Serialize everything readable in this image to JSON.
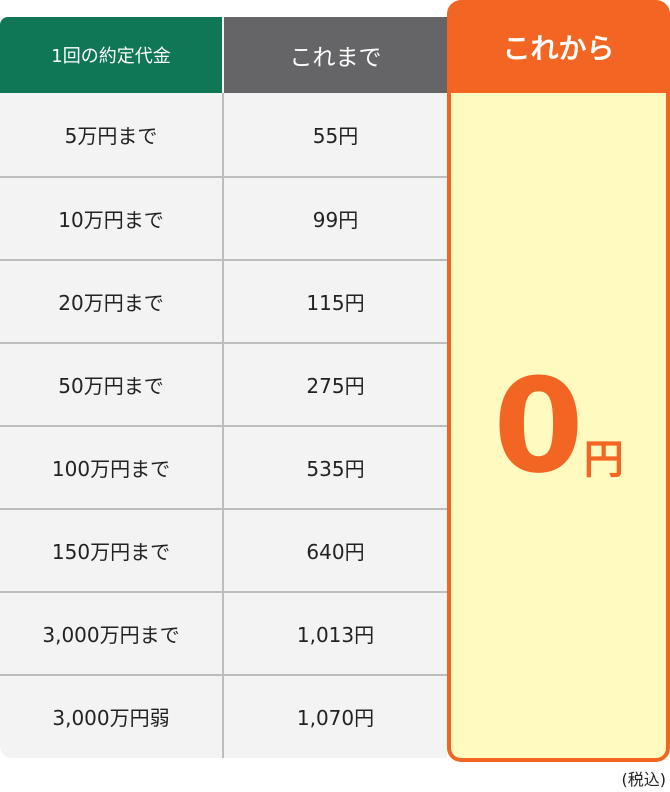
{
  "header": {
    "col1": "1回の約定代金",
    "col2": "これまで",
    "col3": "これから"
  },
  "rows": [
    {
      "amount": "5万円まで",
      "fee": "55円"
    },
    {
      "amount": "10万円まで",
      "fee": "99円"
    },
    {
      "amount": "20万円まで",
      "fee": "115円"
    },
    {
      "amount": "50万円まで",
      "fee": "275円"
    },
    {
      "amount": "100万円まで",
      "fee": "535円"
    },
    {
      "amount": "150万円まで",
      "fee": "640円"
    },
    {
      "amount": "3,000万円まで",
      "fee": "1,013円"
    },
    {
      "amount": "3,000万円弱",
      "fee": "1,070円"
    }
  ],
  "new_fee": {
    "value": "0",
    "unit": "円"
  },
  "note": "(税込)",
  "colors": {
    "green": "#0f7755",
    "gray": "#656567",
    "orange": "#f36522",
    "yellow": "#fffbc0"
  }
}
